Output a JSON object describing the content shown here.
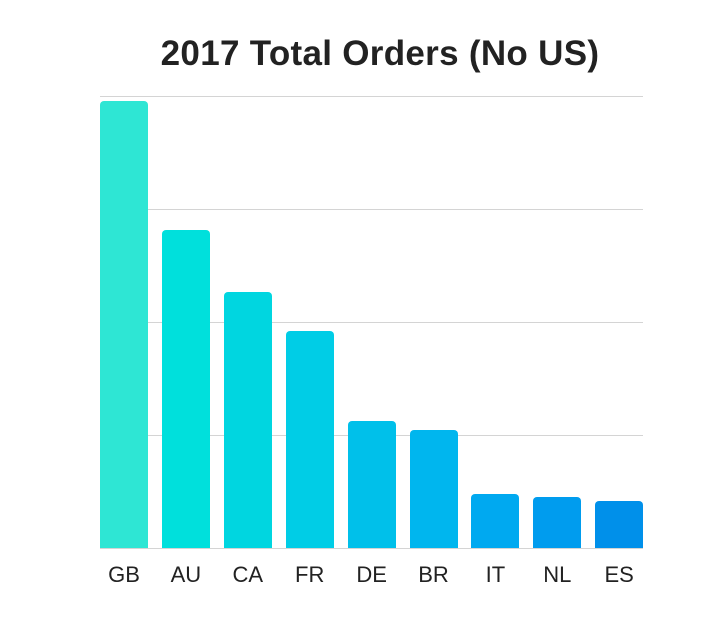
{
  "chart_data": {
    "type": "bar",
    "title": "2017 Total Orders (No US)",
    "xlabel": "",
    "ylabel": "",
    "categories": [
      "GB",
      "AU",
      "CA",
      "FR",
      "DE",
      "BR",
      "IT",
      "NL",
      "ES"
    ],
    "values": [
      3.96,
      2.81,
      2.27,
      1.92,
      1.12,
      1.04,
      0.48,
      0.45,
      0.42
    ],
    "value_units": "relative (1 unit = 1 gridline interval; no y-axis labels shown)",
    "ylim": [
      0,
      4
    ],
    "grid": true,
    "gridlines": [
      1,
      2,
      3,
      4
    ],
    "legend": "none",
    "colors": [
      "#2ee6d4",
      "#00e0dc",
      "#00d6e0",
      "#00cde6",
      "#00c0ea",
      "#00b6ee",
      "#00a9f0",
      "#009cee",
      "#0090ea"
    ]
  }
}
